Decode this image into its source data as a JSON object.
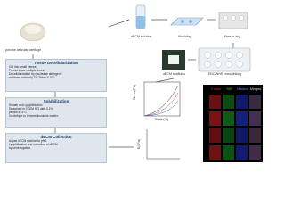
{
  "source": {
    "label": "porcine articular cartilage"
  },
  "steps": [
    {
      "title": "Tissue Decellularization",
      "lines": [
        "Cut into small pieces.",
        "Freeze-thaw multiple times.",
        "Decellularization by (nuclease detergent/",
        "nuclease solution) 1% Triton X-100."
      ]
    },
    {
      "title": "Solubilization",
      "lines": [
        "Smash and Lyophilization",
        "Dissolved in 0.02M HCl with 0.1%",
        "pepsin at 4°C.",
        "Centrifuge to remove insoluble matter."
      ]
    },
    {
      "title": "dECM Collection",
      "lines": [
        "Adjust dECM solution to pH7.",
        "Lyophilization and collection of dECM",
        "by centrifugation."
      ]
    }
  ],
  "products": [
    "dECM solution",
    "Moulding",
    "Freeze-dry",
    "dECM scaffolds",
    "EDC/NHS cross-linking"
  ],
  "charts": {
    "stress_strain": {
      "y_label": "Stress(Pa)",
      "x_label": "Strain(%)"
    },
    "modulus": {
      "y_label": "E(kPa)"
    }
  },
  "imaging": {
    "headers": [
      "F-actin",
      "YAP",
      "Nucleus",
      "Merged"
    ]
  }
}
